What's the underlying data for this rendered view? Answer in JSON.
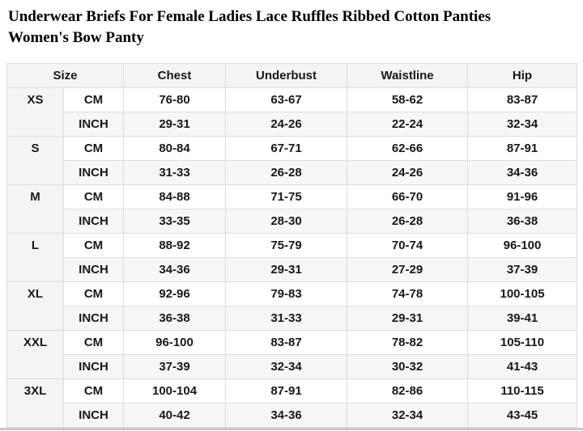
{
  "page": {
    "title_lines": [
      "Underwear Briefs For Female Ladies Lace Ruffles Ribbed Cotton Panties",
      "Women's Bow Panty"
    ]
  },
  "size_chart": {
    "columns": [
      "Size",
      "Chest",
      "Underbust",
      "Waistline",
      "Hip"
    ],
    "unit_labels": [
      "CM",
      "INCH"
    ],
    "sizes": [
      {
        "label": "XS",
        "cm": [
          "76-80",
          "63-67",
          "58-62",
          "83-87"
        ],
        "inch": [
          "29-31",
          "24-26",
          "22-24",
          "32-34"
        ]
      },
      {
        "label": "S",
        "cm": [
          "80-84",
          "67-71",
          "62-66",
          "87-91"
        ],
        "inch": [
          "31-33",
          "26-28",
          "24-26",
          "34-36"
        ]
      },
      {
        "label": "M",
        "cm": [
          "84-88",
          "71-75",
          "66-70",
          "91-96"
        ],
        "inch": [
          "33-35",
          "28-30",
          "26-28",
          "36-38"
        ]
      },
      {
        "label": "L",
        "cm": [
          "88-92",
          "75-79",
          "70-74",
          "96-100"
        ],
        "inch": [
          "34-36",
          "29-31",
          "27-29",
          "37-39"
        ]
      },
      {
        "label": "XL",
        "cm": [
          "92-96",
          "79-83",
          "74-78",
          "100-105"
        ],
        "inch": [
          "36-38",
          "31-33",
          "29-31",
          "39-41"
        ]
      },
      {
        "label": "XXL",
        "cm": [
          "96-100",
          "83-87",
          "78-82",
          "105-110"
        ],
        "inch": [
          "37-39",
          "32-34",
          "30-32",
          "41-43"
        ]
      },
      {
        "label": "3XL",
        "cm": [
          "100-104",
          "87-91",
          "82-86",
          "110-115"
        ],
        "inch": [
          "40-42",
          "34-36",
          "32-34",
          "43-45"
        ]
      }
    ]
  },
  "colors": {
    "border": "#dcdcdf",
    "panel": "#f4f4f5",
    "panel-light": "#f6f6f7",
    "text": "#18181b",
    "title": "#000000",
    "strip": "#c7c7cb"
  }
}
